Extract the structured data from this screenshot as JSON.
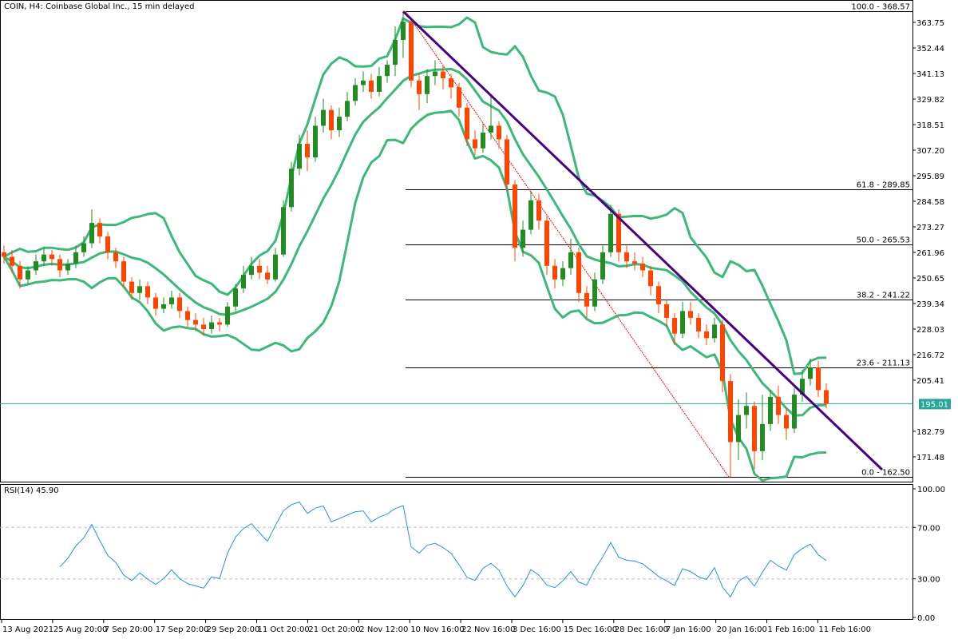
{
  "header": {
    "title": "COIN, H4:  Coinbase Global Inc., 15 min delayed",
    "rsi_label": "RSI(14) 45.90"
  },
  "colors": {
    "bull": "#228b22",
    "bear": "#ff4500",
    "bands": "#3cb878",
    "trendline": "#4b0082",
    "fib_diagonal": "#ff0000",
    "fib_levels": "#000000",
    "price_line": "#26a69a",
    "rsi": "#1e90ff",
    "rsi_levels": "#c0c0c0"
  },
  "chart_data": [
    {
      "type": "candlestick",
      "title": "COIN, H4:  Coinbase Global Inc., 15 min delayed",
      "y_ticks": [
        "363.75",
        "352.44",
        "341.13",
        "329.82",
        "318.51",
        "307.20",
        "295.89",
        "284.58",
        "273.27",
        "261.96",
        "250.65",
        "239.34",
        "228.03",
        "216.72",
        "205.41",
        "182.79",
        "171.48"
      ],
      "x_ticks": [
        "13 Aug 2021",
        "25 Aug 20:00",
        "7 Sep 20:00",
        "17 Sep 20:00",
        "29 Sep 20:00",
        "11 Oct 20:00",
        "21 Oct 20:00",
        "2 Nov 12:00",
        "10 Nov 16:00",
        "22 Nov 16:00",
        "3 Dec 16:00",
        "15 Dec 16:00",
        "28 Dec 16:00",
        "7 Jan 16:00",
        "20 Jan 16:00",
        "1 Feb 16:00",
        "11 Feb 16:00"
      ],
      "ylim": [
        160.5,
        373.6
      ],
      "current_price": "195.01",
      "open": [
        262,
        260,
        256,
        250,
        254,
        258,
        261,
        259,
        254,
        257,
        262,
        266,
        275,
        269,
        262,
        258,
        249,
        244,
        247,
        242,
        237,
        239,
        242,
        236,
        232,
        230,
        228,
        231,
        230,
        238,
        246,
        252,
        256,
        253,
        250,
        261,
        282,
        299,
        310,
        304,
        318,
        325,
        316,
        322,
        329,
        336,
        338,
        333,
        340,
        345,
        356,
        364,
        338,
        332,
        340,
        342,
        339,
        335,
        326,
        312,
        308,
        315,
        318,
        312,
        292,
        264,
        272,
        285,
        276,
        256,
        250,
        255,
        262,
        244,
        238,
        250,
        262,
        279,
        262,
        258,
        257,
        254,
        247,
        239,
        233,
        226,
        236,
        233,
        227,
        224,
        230,
        205,
        178,
        190,
        194,
        174,
        186,
        198,
        190,
        184,
        199,
        206,
        211,
        201
      ],
      "high": [
        265,
        263,
        258,
        256,
        261,
        264,
        263,
        261,
        259,
        265,
        269,
        281,
        277,
        271,
        264,
        260,
        251,
        250,
        249,
        244,
        242,
        245,
        244,
        238,
        235,
        233,
        234,
        233,
        240,
        248,
        256,
        260,
        259,
        256,
        264,
        285,
        302,
        314,
        316,
        322,
        330,
        327,
        326,
        333,
        339,
        342,
        341,
        344,
        347,
        362,
        368.57,
        366,
        341,
        343,
        347,
        345,
        341,
        337,
        328,
        316,
        319,
        331,
        320,
        314,
        294,
        276,
        289,
        288,
        278,
        259,
        258,
        268,
        264,
        247,
        253,
        265,
        283,
        281,
        265,
        262,
        260,
        256,
        249,
        241,
        235,
        240,
        240,
        235,
        230,
        233,
        232,
        208,
        197,
        200,
        196,
        199,
        201,
        203,
        193,
        202,
        210,
        215,
        214,
        204
      ],
      "low": [
        257,
        253,
        246,
        248,
        252,
        256,
        256,
        251,
        252,
        255,
        260,
        264,
        266,
        259,
        255,
        246,
        241,
        241,
        239,
        234,
        235,
        237,
        233,
        229,
        227,
        225,
        226,
        227,
        229,
        236,
        244,
        250,
        250,
        248,
        249,
        260,
        280,
        296,
        298,
        302,
        315,
        312,
        313,
        320,
        327,
        333,
        330,
        331,
        337,
        340,
        348,
        335,
        325,
        328,
        336,
        334,
        330,
        322,
        309,
        305,
        306,
        312,
        308,
        289,
        258,
        260,
        270,
        272,
        252,
        246,
        247,
        252,
        240,
        233,
        236,
        248,
        260,
        258,
        255,
        254,
        251,
        243,
        235,
        229,
        221,
        224,
        230,
        224,
        221,
        222,
        200,
        162.5,
        170,
        184,
        166,
        170,
        183,
        186,
        179,
        182,
        196,
        203,
        198,
        193
      ],
      "close": [
        260,
        256,
        250,
        254,
        258,
        261,
        259,
        254,
        257,
        262,
        266,
        275,
        269,
        262,
        258,
        249,
        244,
        247,
        242,
        237,
        239,
        242,
        236,
        232,
        230,
        228,
        231,
        230,
        238,
        246,
        252,
        256,
        253,
        250,
        261,
        282,
        299,
        310,
        304,
        318,
        325,
        316,
        322,
        329,
        336,
        338,
        333,
        340,
        345,
        356,
        364,
        338,
        332,
        340,
        342,
        339,
        335,
        326,
        312,
        308,
        315,
        318,
        312,
        292,
        264,
        272,
        285,
        276,
        256,
        250,
        255,
        262,
        244,
        238,
        250,
        262,
        279,
        262,
        258,
        257,
        254,
        247,
        239,
        233,
        226,
        236,
        233,
        227,
        224,
        230,
        205,
        178,
        190,
        194,
        174,
        186,
        198,
        190,
        184,
        199,
        206,
        211,
        201,
        195.01
      ],
      "bollinger_bands": {
        "shown": true
      },
      "fibonacci": {
        "start_candle": 50,
        "end_candle": 91,
        "levels": [
          {
            "label": "100.0 - 368.57",
            "price": 368.57
          },
          {
            "label": "61.8 - 289.85",
            "price": 289.85
          },
          {
            "label": "50.0 - 265.53",
            "price": 265.53
          },
          {
            "label": "38.2 - 241.22",
            "price": 241.22
          },
          {
            "label": "23.6 - 211.13",
            "price": 211.13
          },
          {
            "label": "0.0 - 162.50",
            "price": 162.5
          }
        ]
      },
      "trendline": {
        "start_candle": 50,
        "start_price": 368.57,
        "end_candle": 110,
        "end_price": 165.8
      }
    },
    {
      "type": "line",
      "title": "RSI(14) 45.90",
      "ylim": [
        0,
        100
      ],
      "y_ticks": [
        "100.00",
        "70.00",
        "30.00",
        "0.00"
      ],
      "levels": [
        70,
        30
      ],
      "grid": false
    }
  ]
}
